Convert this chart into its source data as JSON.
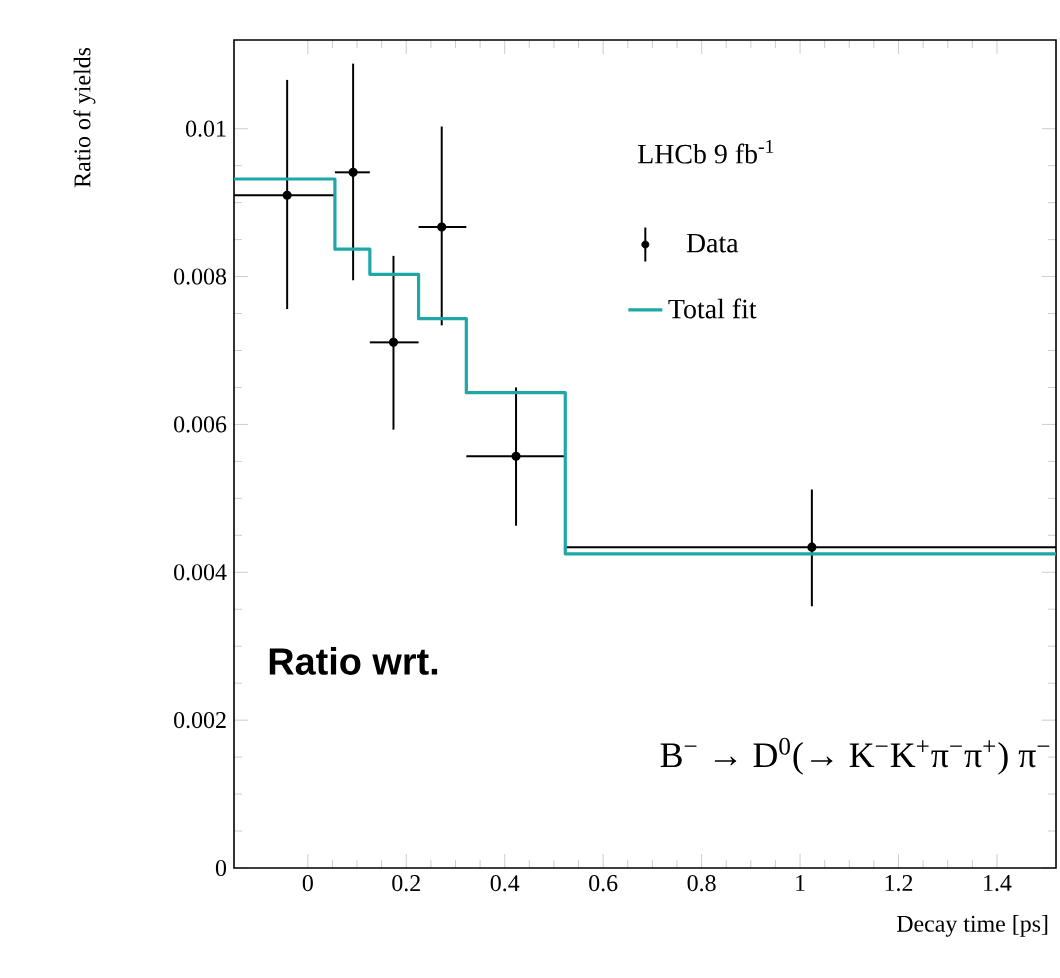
{
  "chart_data": {
    "type": "scatter",
    "xlabel": "Decay time [ps]",
    "ylabel": "Ratio of yields",
    "xlim": [
      -0.15,
      1.52
    ],
    "ylim": [
      0,
      0.0112
    ],
    "xticks": [
      0,
      0.2,
      0.4,
      0.6,
      0.8,
      1,
      1.2,
      1.4
    ],
    "yticks": [
      0,
      0.002,
      0.004,
      0.006,
      0.008,
      0.01
    ],
    "legend": "top right",
    "grid": false,
    "annotations": [
      "LHCb 9 fb$^{-1}$",
      "Ratio wrt.",
      "B$^{−}$ → D$^{0}$(→ K$^{−}$K$^{+}$π$^{−}$π$^{+}$) π$^{−}$"
    ],
    "series": [
      {
        "name": "Data",
        "marker": "circle",
        "color": "#000000",
        "x": [
          -0.042,
          0.092,
          0.174,
          0.272,
          0.423,
          1.024
        ],
        "values": [
          0.0091,
          0.00941,
          0.00711,
          0.00867,
          0.00557,
          0.00434
        ],
        "errors": [
          [
            0.00756,
            0.01066
          ],
          [
            0.00795,
            0.01088
          ],
          [
            0.00593,
            0.00828
          ],
          [
            0.00734,
            0.01003
          ],
          [
            0.00463,
            0.0065
          ],
          [
            0.00354,
            0.00512
          ]
        ],
        "xerrors": [
          [
            -0.15,
            0.055
          ],
          [
            0.055,
            0.126
          ],
          [
            0.126,
            0.225
          ],
          [
            0.225,
            0.322
          ],
          [
            0.322,
            0.523
          ],
          [
            0.523,
            1.52
          ]
        ]
      },
      {
        "name": "Total fit",
        "type": "step",
        "color": "#1fa7a8",
        "x": [
          -0.15,
          0.055,
          0.126,
          0.225,
          0.322,
          0.523,
          1.52
        ],
        "values": [
          0.00932,
          0.00837,
          0.00803,
          0.00743,
          0.00643,
          0.00425,
          0.00425
        ]
      }
    ]
  }
}
